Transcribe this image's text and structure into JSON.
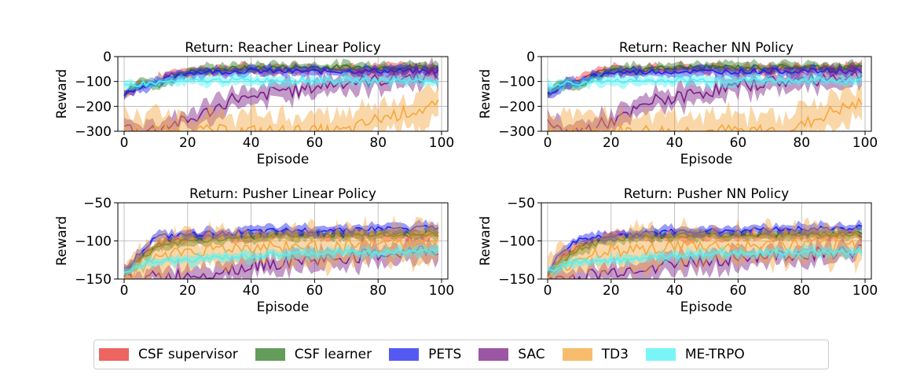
{
  "colors": {
    "csf_supervisor": "#e8312d",
    "csf_learner": "#2f7d23",
    "pets": "#1d22f0",
    "sac": "#7a1f86",
    "td3": "#f5a73d",
    "me_trpo": "#4ef2f5"
  },
  "legend": [
    {
      "key": "csf_supervisor",
      "label": "CSF supervisor"
    },
    {
      "key": "csf_learner",
      "label": "CSF learner"
    },
    {
      "key": "pets",
      "label": "PETS"
    },
    {
      "key": "sac",
      "label": "SAC"
    },
    {
      "key": "td3",
      "label": "TD3"
    },
    {
      "key": "me_trpo",
      "label": "ME-TRPO"
    }
  ],
  "chart_data": [
    {
      "type": "line",
      "title": "Return: Reacher Linear Policy",
      "xlabel": "Episode",
      "ylabel": "Reward",
      "xlim": [
        0,
        100
      ],
      "ylim": [
        -300,
        0
      ],
      "xticks": [
        "0",
        "20",
        "40",
        "60",
        "80",
        "100"
      ],
      "yticks": [
        "0",
        "−100",
        "−200",
        "−300"
      ],
      "grid": true,
      "series": [
        {
          "name": "CSF supervisor",
          "x": [
            0,
            5,
            10,
            15,
            20,
            30,
            40,
            50,
            60,
            70,
            80,
            90,
            99
          ],
          "y": [
            -150,
            -110,
            -100,
            -70,
            -60,
            -55,
            -52,
            -50,
            -50,
            -50,
            -48,
            -50,
            -50
          ]
        },
        {
          "name": "CSF learner",
          "x": [
            0,
            5,
            10,
            15,
            20,
            30,
            40,
            50,
            60,
            70,
            80,
            90,
            99
          ],
          "y": [
            -150,
            -100,
            -120,
            -90,
            -60,
            -50,
            -45,
            -42,
            -42,
            -42,
            -42,
            -42,
            -42
          ]
        },
        {
          "name": "PETS",
          "x": [
            0,
            5,
            10,
            15,
            20,
            30,
            40,
            50,
            60,
            70,
            80,
            90,
            99
          ],
          "y": [
            -150,
            -120,
            -110,
            -80,
            -65,
            -60,
            -58,
            -60,
            -60,
            -58,
            -58,
            -58,
            -60
          ]
        },
        {
          "name": "SAC",
          "x": [
            0,
            5,
            10,
            15,
            20,
            25,
            30,
            35,
            40,
            45,
            50,
            55,
            60,
            65,
            70,
            75,
            80,
            85,
            90,
            95,
            99
          ],
          "y": [
            -280,
            -300,
            -290,
            -270,
            -260,
            -230,
            -200,
            -160,
            -180,
            -150,
            -130,
            -140,
            -120,
            -110,
            -100,
            -100,
            -95,
            -90,
            -80,
            -80,
            -70
          ]
        },
        {
          "name": "TD3",
          "x": [
            0,
            10,
            20,
            30,
            40,
            50,
            60,
            70,
            80,
            90,
            99
          ],
          "y": [
            -300,
            -300,
            -300,
            -300,
            -300,
            -300,
            -300,
            -300,
            -250,
            -220,
            -200
          ]
        },
        {
          "name": "ME-TRPO",
          "x": [
            0,
            5,
            10,
            15,
            20,
            30,
            40,
            50,
            60,
            70,
            80,
            90,
            99
          ],
          "y": [
            -120,
            -110,
            -105,
            -100,
            -100,
            -95,
            -95,
            -95,
            -95,
            -95,
            -95,
            -95,
            -95
          ]
        }
      ]
    },
    {
      "type": "line",
      "title": "Return: Reacher NN Policy",
      "xlabel": "Episode",
      "ylabel": "Reward",
      "xlim": [
        0,
        100
      ],
      "ylim": [
        -300,
        0
      ],
      "xticks": [
        "0",
        "20",
        "40",
        "60",
        "80",
        "100"
      ],
      "yticks": [
        "0",
        "−100",
        "−200",
        "−300"
      ],
      "grid": true,
      "series": [
        {
          "name": "CSF supervisor",
          "x": [
            0,
            5,
            10,
            15,
            20,
            30,
            40,
            50,
            60,
            70,
            80,
            90,
            99
          ],
          "y": [
            -150,
            -110,
            -90,
            -60,
            -55,
            -52,
            -50,
            -48,
            -48,
            -48,
            -46,
            -46,
            -46
          ]
        },
        {
          "name": "CSF learner",
          "x": [
            0,
            5,
            10,
            15,
            20,
            30,
            40,
            50,
            60,
            70,
            80,
            90,
            99
          ],
          "y": [
            -150,
            -110,
            -120,
            -80,
            -55,
            -48,
            -45,
            -42,
            -42,
            -42,
            -42,
            -42,
            -42
          ]
        },
        {
          "name": "PETS",
          "x": [
            0,
            5,
            10,
            15,
            20,
            30,
            40,
            50,
            60,
            70,
            80,
            90,
            99
          ],
          "y": [
            -150,
            -120,
            -100,
            -75,
            -65,
            -62,
            -60,
            -60,
            -60,
            -58,
            -58,
            -58,
            -58
          ]
        },
        {
          "name": "SAC",
          "x": [
            0,
            5,
            10,
            15,
            20,
            25,
            30,
            35,
            40,
            45,
            50,
            55,
            60,
            65,
            70,
            75,
            80,
            85,
            90,
            95,
            99
          ],
          "y": [
            -280,
            -300,
            -300,
            -280,
            -260,
            -240,
            -200,
            -170,
            -170,
            -150,
            -140,
            -130,
            -120,
            -110,
            -100,
            -100,
            -95,
            -90,
            -80,
            -80,
            -75
          ]
        },
        {
          "name": "TD3",
          "x": [
            0,
            10,
            20,
            30,
            40,
            50,
            60,
            70,
            80,
            90,
            99
          ],
          "y": [
            -300,
            -300,
            -300,
            -300,
            -300,
            -300,
            -300,
            -300,
            -280,
            -220,
            -190
          ]
        },
        {
          "name": "ME-TRPO",
          "x": [
            0,
            5,
            10,
            15,
            20,
            30,
            40,
            50,
            60,
            70,
            80,
            90,
            99
          ],
          "y": [
            -120,
            -110,
            -105,
            -100,
            -100,
            -97,
            -95,
            -95,
            -95,
            -95,
            -95,
            -95,
            -95
          ]
        }
      ]
    },
    {
      "type": "line",
      "title": "Return: Pusher Linear Policy",
      "xlabel": "Episode",
      "ylabel": "Reward",
      "xlim": [
        0,
        100
      ],
      "ylim": [
        -150,
        -50
      ],
      "xticks": [
        "0",
        "20",
        "40",
        "60",
        "80",
        "100"
      ],
      "yticks": [
        "−50",
        "−100",
        "−150"
      ],
      "grid": true,
      "series": [
        {
          "name": "CSF supervisor",
          "x": [
            0,
            5,
            10,
            20,
            30,
            40,
            50,
            60,
            70,
            80,
            90,
            99
          ],
          "y": [
            -145,
            -120,
            -105,
            -95,
            -95,
            -93,
            -92,
            -92,
            -92,
            -92,
            -92,
            -92
          ]
        },
        {
          "name": "CSF learner",
          "x": [
            0,
            5,
            10,
            20,
            30,
            40,
            50,
            60,
            70,
            80,
            90,
            99
          ],
          "y": [
            -145,
            -125,
            -110,
            -100,
            -97,
            -95,
            -93,
            -92,
            -92,
            -92,
            -90,
            -90
          ]
        },
        {
          "name": "PETS",
          "x": [
            0,
            5,
            10,
            20,
            30,
            40,
            50,
            60,
            70,
            80,
            90,
            99
          ],
          "y": [
            -140,
            -115,
            -95,
            -92,
            -90,
            -88,
            -87,
            -86,
            -85,
            -84,
            -84,
            -82
          ]
        },
        {
          "name": "SAC",
          "x": [
            0,
            5,
            10,
            20,
            30,
            40,
            50,
            60,
            70,
            80,
            90,
            99
          ],
          "y": [
            -150,
            -150,
            -148,
            -145,
            -140,
            -132,
            -128,
            -125,
            -122,
            -118,
            -115,
            -112
          ]
        },
        {
          "name": "TD3",
          "x": [
            0,
            5,
            10,
            20,
            30,
            40,
            50,
            60,
            70,
            80,
            90,
            99
          ],
          "y": [
            -150,
            -135,
            -120,
            -112,
            -110,
            -108,
            -107,
            -108,
            -108,
            -106,
            -105,
            -105
          ]
        },
        {
          "name": "ME-TRPO",
          "x": [
            0,
            5,
            10,
            20,
            30,
            40,
            50,
            60,
            70,
            80,
            90,
            99
          ],
          "y": [
            -140,
            -132,
            -128,
            -125,
            -122,
            -120,
            -118,
            -116,
            -115,
            -115,
            -114,
            -113
          ]
        }
      ]
    },
    {
      "type": "line",
      "title": "Return: Pusher NN Policy",
      "xlabel": "Episode",
      "ylabel": "Reward",
      "xlim": [
        0,
        100
      ],
      "ylim": [
        -150,
        -50
      ],
      "xticks": [
        "0",
        "20",
        "40",
        "60",
        "80",
        "100"
      ],
      "yticks": [
        "−50",
        "−100",
        "−150"
      ],
      "grid": true,
      "series": [
        {
          "name": "CSF supervisor",
          "x": [
            0,
            5,
            10,
            20,
            30,
            40,
            50,
            60,
            70,
            80,
            90,
            99
          ],
          "y": [
            -145,
            -120,
            -105,
            -95,
            -92,
            -92,
            -92,
            -92,
            -92,
            -92,
            -92,
            -92
          ]
        },
        {
          "name": "CSF learner",
          "x": [
            0,
            5,
            10,
            20,
            30,
            40,
            50,
            60,
            70,
            80,
            90,
            99
          ],
          "y": [
            -145,
            -125,
            -110,
            -98,
            -95,
            -93,
            -92,
            -92,
            -92,
            -92,
            -90,
            -90
          ]
        },
        {
          "name": "PETS",
          "x": [
            0,
            5,
            10,
            20,
            30,
            40,
            50,
            60,
            70,
            80,
            90,
            99
          ],
          "y": [
            -140,
            -112,
            -98,
            -93,
            -90,
            -88,
            -87,
            -86,
            -85,
            -84,
            -84,
            -82
          ]
        },
        {
          "name": "SAC",
          "x": [
            0,
            5,
            10,
            20,
            30,
            40,
            50,
            60,
            70,
            80,
            90,
            99
          ],
          "y": [
            -150,
            -150,
            -148,
            -142,
            -135,
            -130,
            -126,
            -122,
            -120,
            -118,
            -116,
            -113
          ]
        },
        {
          "name": "TD3",
          "x": [
            0,
            5,
            10,
            20,
            30,
            40,
            50,
            60,
            70,
            80,
            90,
            99
          ],
          "y": [
            -150,
            -135,
            -122,
            -112,
            -110,
            -108,
            -107,
            -108,
            -108,
            -106,
            -106,
            -105
          ]
        },
        {
          "name": "ME-TRPO",
          "x": [
            0,
            5,
            10,
            20,
            30,
            40,
            50,
            60,
            70,
            80,
            90,
            99
          ],
          "y": [
            -140,
            -132,
            -128,
            -125,
            -122,
            -120,
            -118,
            -116,
            -115,
            -115,
            -114,
            -113
          ]
        }
      ]
    }
  ]
}
